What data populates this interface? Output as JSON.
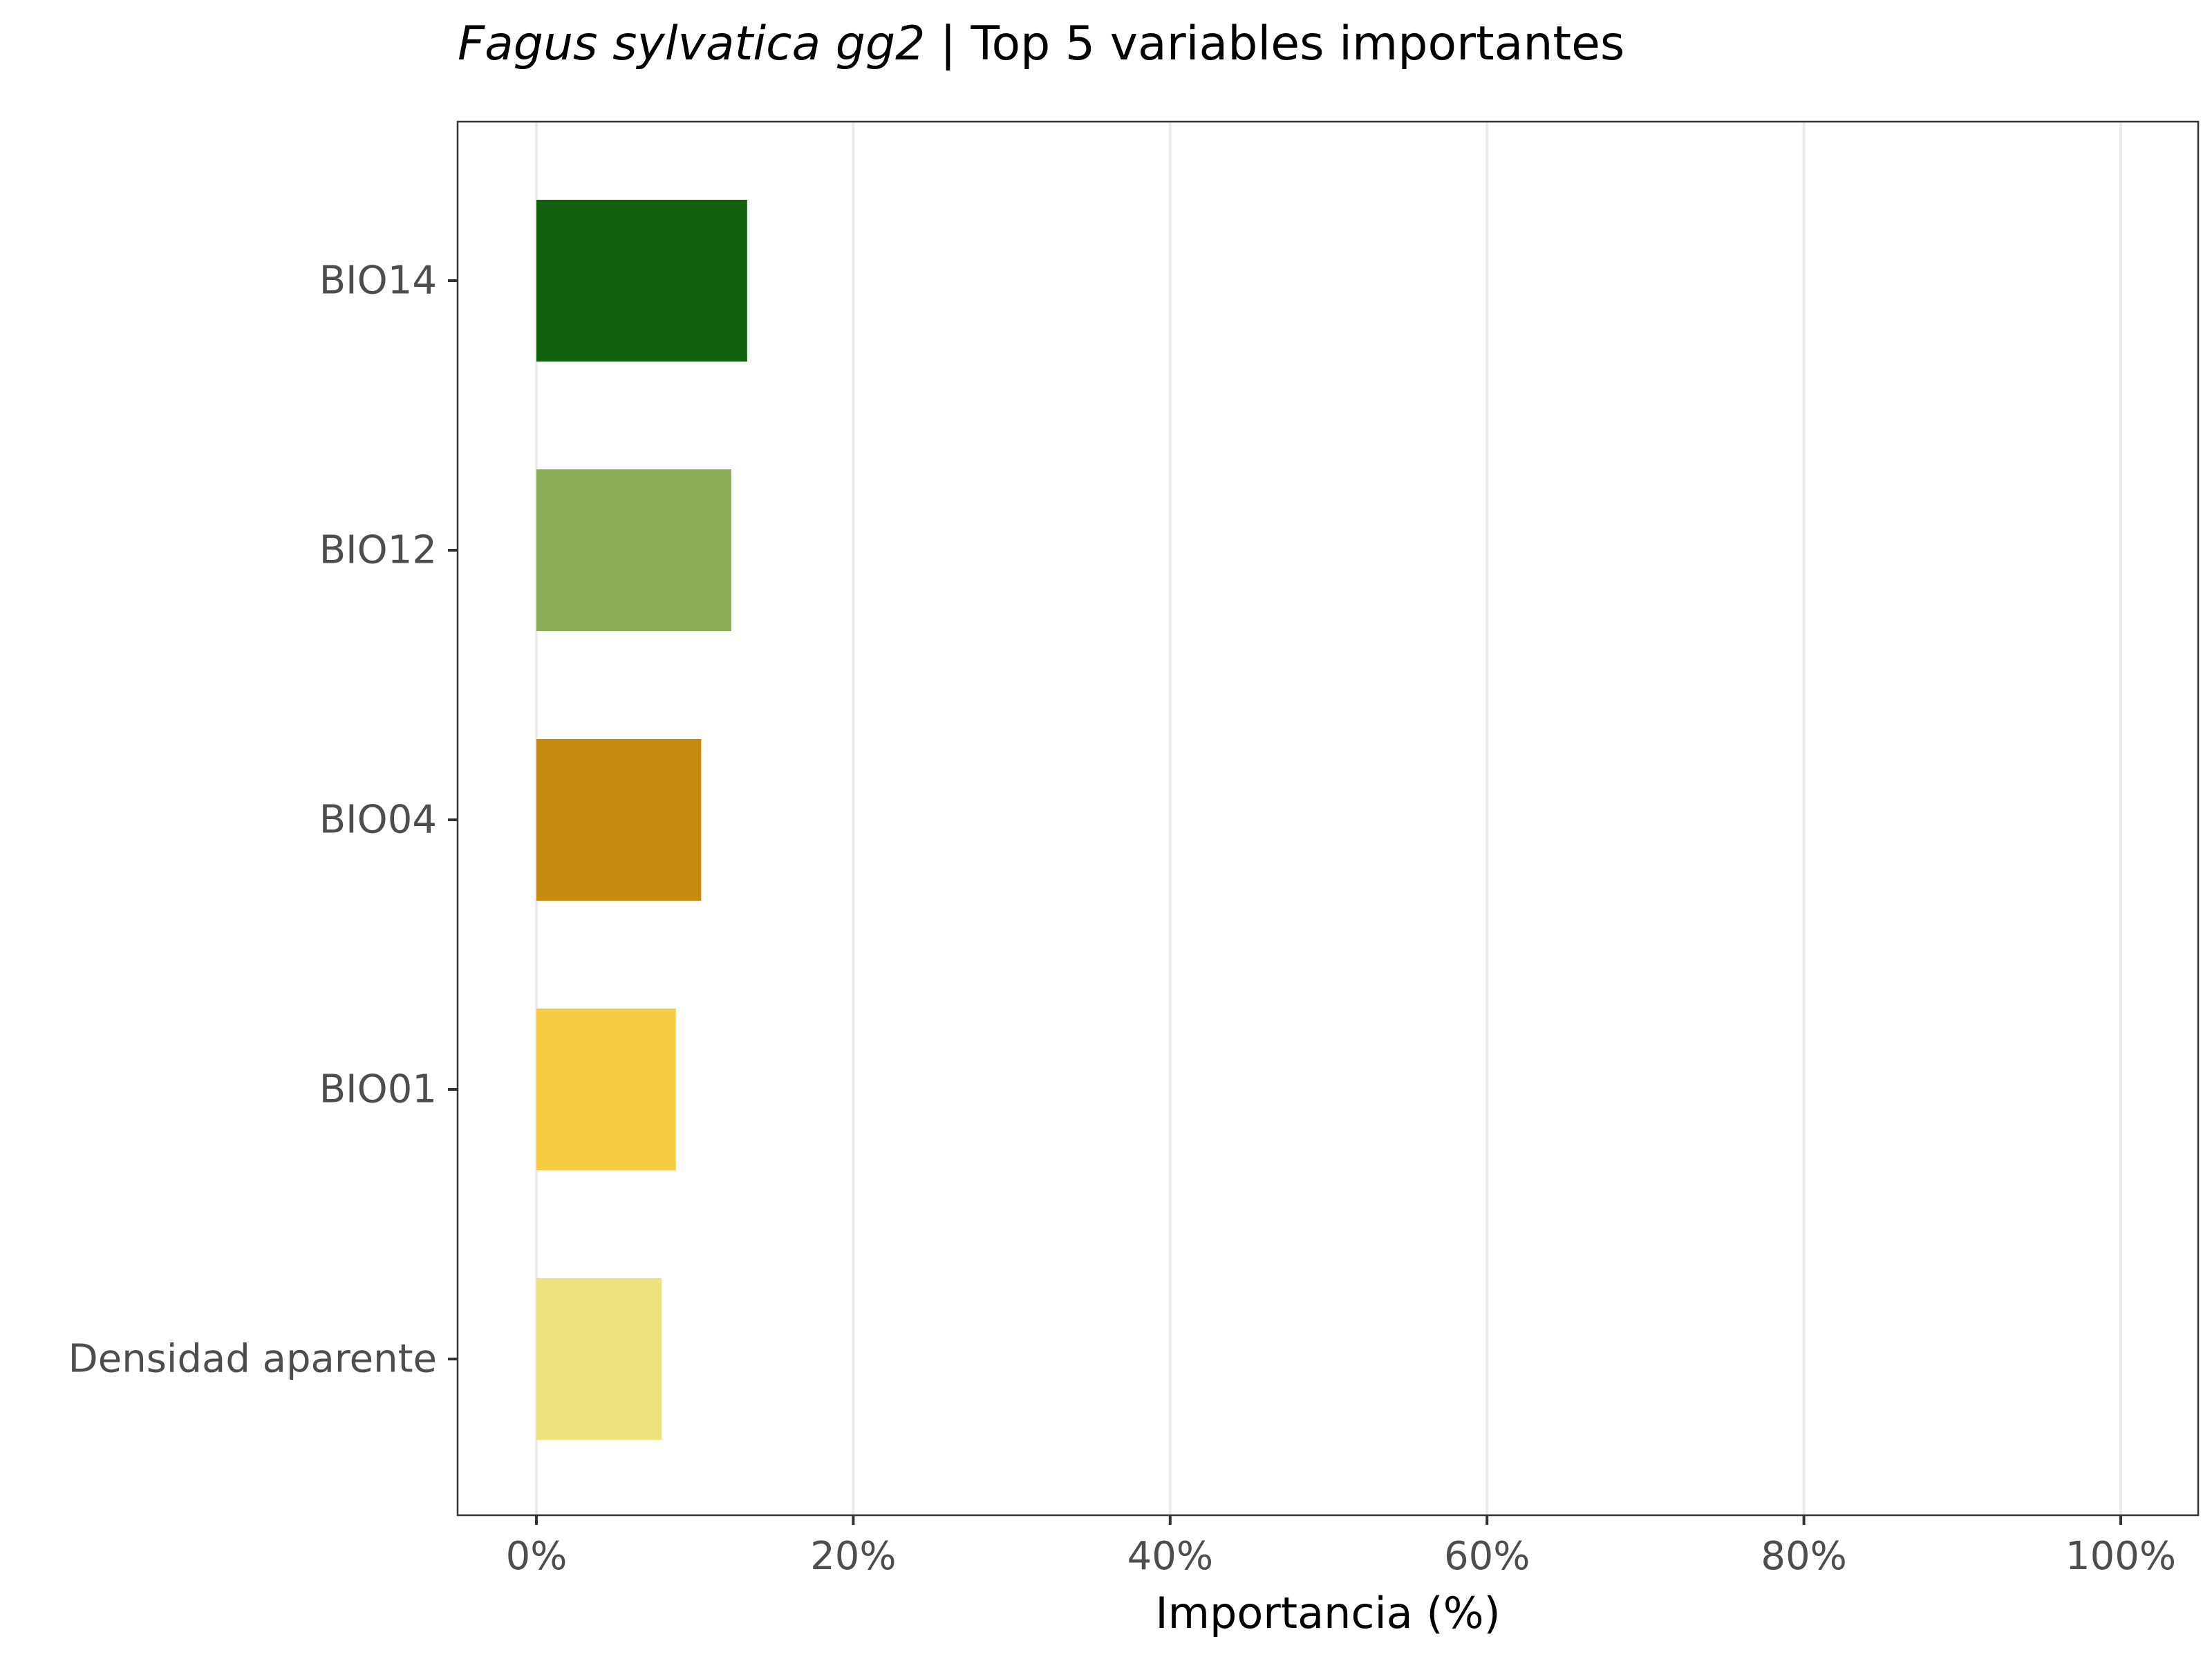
{
  "chart_data": {
    "type": "bar",
    "orientation": "horizontal",
    "title_italic": "Fagus sylvatica gg2",
    "title_rest": " | Top 5 variables importantes",
    "xlabel": "Importancia (%)",
    "ylabel": "",
    "xlim": [
      0,
      100
    ],
    "x_ticks": [
      0,
      20,
      40,
      60,
      80,
      100
    ],
    "x_tick_labels": [
      "0%",
      "20%",
      "40%",
      "60%",
      "80%",
      "100%"
    ],
    "grid": "vertical major gridlines",
    "legend": "none",
    "categories": [
      "BIO14",
      "BIO12",
      "BIO04",
      "BIO01",
      "Densidad aparente"
    ],
    "values": [
      13.3,
      12.3,
      10.4,
      8.8,
      7.9
    ],
    "colors": [
      "#11610f",
      "#8aad56",
      "#c78a0f",
      "#f5cb42",
      "#ede27c"
    ]
  }
}
